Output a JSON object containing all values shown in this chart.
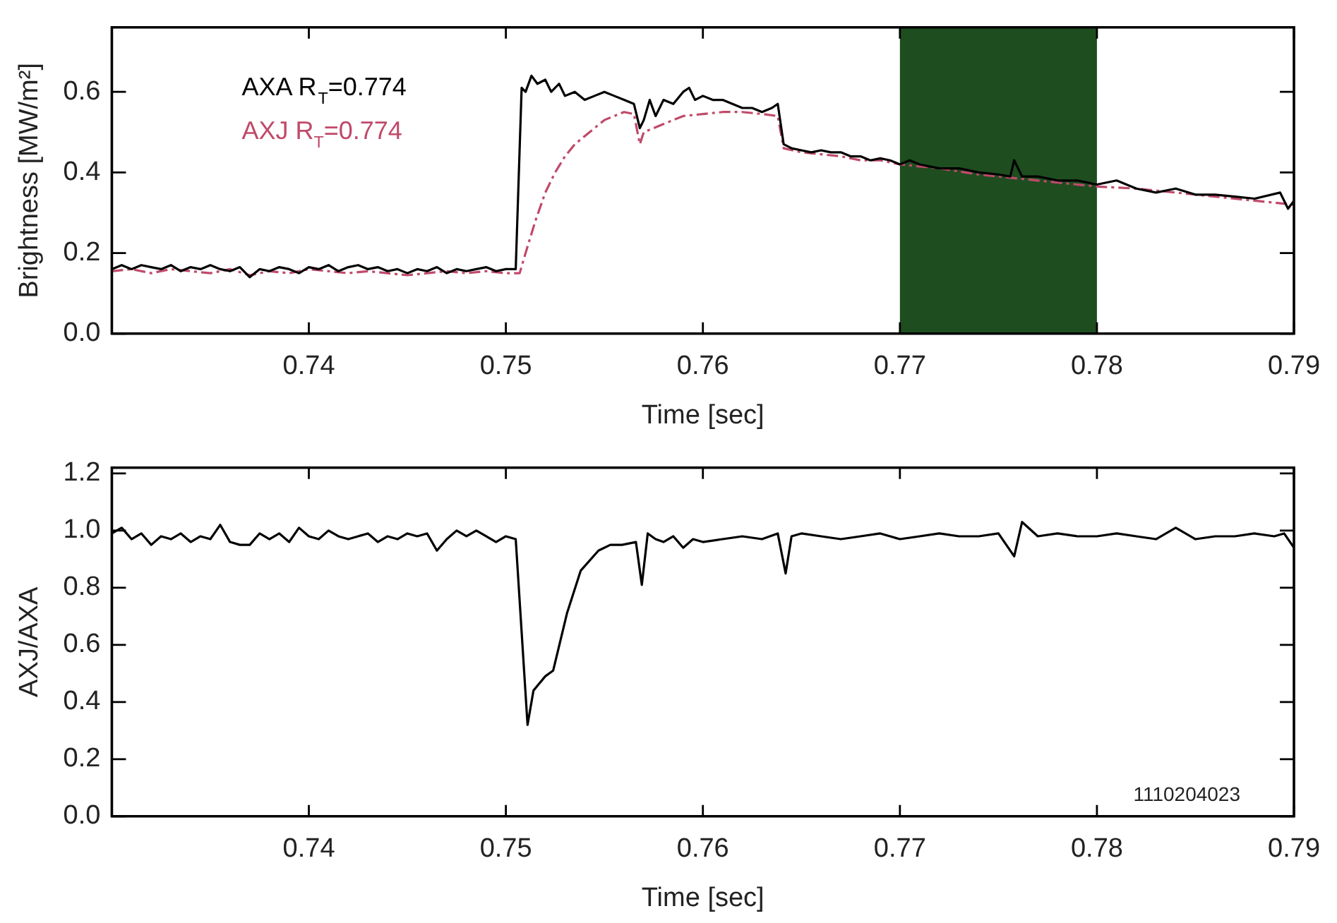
{
  "chart_data": [
    {
      "type": "line",
      "xlabel": "Time [sec]",
      "ylabel": "Brightness [MW/m²]",
      "xlim": [
        0.73,
        0.79
      ],
      "ylim": [
        0,
        0.76
      ],
      "xticks": [
        0.74,
        0.75,
        0.76,
        0.77,
        0.78,
        0.79
      ],
      "yticks": [
        {
          "value": 0,
          "label": "0.0"
        },
        {
          "value": 0.2,
          "label": "0.2"
        },
        {
          "value": 0.4,
          "label": "0.4"
        },
        {
          "value": 0.6,
          "label": "0.6"
        }
      ],
      "grid": false,
      "legend": "top left",
      "bands": [
        {
          "axis": "x",
          "from": 0.77,
          "to": 0.78,
          "color": "#1e4d20"
        }
      ],
      "series": [
        {
          "name": "AXA R$_{T}$=0.774",
          "color": "#000000",
          "line_style": "solid",
          "x": [
            0.73,
            0.7305,
            0.731,
            0.7315,
            0.732,
            0.7325,
            0.733,
            0.7335,
            0.734,
            0.7345,
            0.735,
            0.7355,
            0.736,
            0.7365,
            0.737,
            0.7375,
            0.738,
            0.7385,
            0.739,
            0.7395,
            0.74,
            0.7405,
            0.741,
            0.7415,
            0.742,
            0.7425,
            0.743,
            0.7435,
            0.744,
            0.7445,
            0.745,
            0.7455,
            0.746,
            0.7465,
            0.747,
            0.7475,
            0.748,
            0.7485,
            0.749,
            0.7495,
            0.75,
            0.7505,
            0.7508,
            0.751,
            0.7513,
            0.7516,
            0.752,
            0.7523,
            0.7527,
            0.753,
            0.7535,
            0.754,
            0.7545,
            0.755,
            0.7555,
            0.756,
            0.7565,
            0.7568,
            0.757,
            0.7573,
            0.7576,
            0.758,
            0.7585,
            0.759,
            0.7593,
            0.7596,
            0.76,
            0.7605,
            0.761,
            0.7615,
            0.762,
            0.7625,
            0.763,
            0.7635,
            0.7638,
            0.7641,
            0.7645,
            0.765,
            0.7655,
            0.766,
            0.7665,
            0.767,
            0.7675,
            0.768,
            0.7685,
            0.769,
            0.7695,
            0.77,
            0.7705,
            0.771,
            0.772,
            0.773,
            0.774,
            0.775,
            0.7756,
            0.7758,
            0.7762,
            0.777,
            0.778,
            0.779,
            0.78,
            0.781,
            0.782,
            0.783,
            0.784,
            0.785,
            0.786,
            0.787,
            0.788,
            0.7893,
            0.7897,
            0.79
          ],
          "values": [
            0.16,
            0.17,
            0.16,
            0.17,
            0.165,
            0.16,
            0.17,
            0.155,
            0.165,
            0.16,
            0.17,
            0.16,
            0.155,
            0.165,
            0.14,
            0.16,
            0.155,
            0.165,
            0.16,
            0.15,
            0.165,
            0.16,
            0.17,
            0.155,
            0.165,
            0.17,
            0.16,
            0.165,
            0.155,
            0.16,
            0.15,
            0.16,
            0.155,
            0.165,
            0.15,
            0.16,
            0.155,
            0.16,
            0.165,
            0.155,
            0.16,
            0.16,
            0.61,
            0.6,
            0.64,
            0.62,
            0.63,
            0.6,
            0.62,
            0.59,
            0.6,
            0.58,
            0.59,
            0.6,
            0.59,
            0.58,
            0.57,
            0.51,
            0.53,
            0.58,
            0.54,
            0.58,
            0.57,
            0.6,
            0.61,
            0.58,
            0.59,
            0.58,
            0.58,
            0.57,
            0.56,
            0.56,
            0.55,
            0.56,
            0.57,
            0.47,
            0.46,
            0.455,
            0.45,
            0.455,
            0.45,
            0.45,
            0.44,
            0.44,
            0.43,
            0.435,
            0.43,
            0.42,
            0.43,
            0.42,
            0.41,
            0.41,
            0.4,
            0.395,
            0.39,
            0.43,
            0.39,
            0.39,
            0.38,
            0.38,
            0.37,
            0.38,
            0.36,
            0.35,
            0.36,
            0.345,
            0.345,
            0.34,
            0.335,
            0.35,
            0.31,
            0.33
          ]
        },
        {
          "name": "AXJ R$_{T}$=0.774",
          "color": "#c04a6a",
          "line_style": "dashed",
          "x": [
            0.73,
            0.731,
            0.732,
            0.733,
            0.734,
            0.735,
            0.736,
            0.737,
            0.738,
            0.739,
            0.74,
            0.741,
            0.742,
            0.743,
            0.744,
            0.745,
            0.746,
            0.747,
            0.748,
            0.749,
            0.75,
            0.7507,
            0.751,
            0.7515,
            0.752,
            0.7525,
            0.753,
            0.7535,
            0.754,
            0.7545,
            0.755,
            0.7555,
            0.756,
            0.7565,
            0.7568,
            0.757,
            0.7575,
            0.758,
            0.759,
            0.76,
            0.761,
            0.762,
            0.763,
            0.7638,
            0.7641,
            0.765,
            0.766,
            0.767,
            0.768,
            0.769,
            0.77,
            0.772,
            0.774,
            0.776,
            0.778,
            0.78,
            0.782,
            0.784,
            0.786,
            0.788,
            0.79
          ],
          "values": [
            0.155,
            0.16,
            0.15,
            0.16,
            0.155,
            0.15,
            0.16,
            0.145,
            0.155,
            0.15,
            0.16,
            0.155,
            0.15,
            0.155,
            0.15,
            0.145,
            0.15,
            0.155,
            0.15,
            0.155,
            0.15,
            0.15,
            0.2,
            0.28,
            0.35,
            0.4,
            0.44,
            0.47,
            0.49,
            0.51,
            0.53,
            0.54,
            0.55,
            0.545,
            0.47,
            0.5,
            0.51,
            0.52,
            0.54,
            0.545,
            0.55,
            0.55,
            0.545,
            0.54,
            0.46,
            0.45,
            0.445,
            0.44,
            0.43,
            0.43,
            0.42,
            0.41,
            0.395,
            0.385,
            0.375,
            0.365,
            0.36,
            0.35,
            0.34,
            0.33,
            0.32
          ]
        }
      ]
    },
    {
      "type": "line",
      "xlabel": "Time [sec]",
      "ylabel": "AXJ/AXA",
      "xlim": [
        0.73,
        0.79
      ],
      "ylim": [
        0,
        1.22
      ],
      "xticks": [
        0.74,
        0.75,
        0.76,
        0.77,
        0.78,
        0.79
      ],
      "yticks": [
        {
          "value": 0,
          "label": "0.0"
        },
        {
          "value": 0.2,
          "label": "0.2"
        },
        {
          "value": 0.4,
          "label": "0.4"
        },
        {
          "value": 0.6,
          "label": "0.6"
        },
        {
          "value": 0.8,
          "label": "0.8"
        },
        {
          "value": 1,
          "label": "1.0"
        },
        {
          "value": 1.2,
          "label": "1.2"
        }
      ],
      "grid": false,
      "annotations": [
        "1110204023"
      ],
      "series": [
        {
          "color": "#000000",
          "x": [
            0.73,
            0.7305,
            0.731,
            0.7315,
            0.732,
            0.7325,
            0.733,
            0.7335,
            0.734,
            0.7345,
            0.735,
            0.7355,
            0.736,
            0.7365,
            0.737,
            0.7375,
            0.738,
            0.7385,
            0.739,
            0.7395,
            0.74,
            0.7405,
            0.741,
            0.7415,
            0.742,
            0.7425,
            0.743,
            0.7435,
            0.744,
            0.7445,
            0.745,
            0.7455,
            0.746,
            0.7465,
            0.747,
            0.7475,
            0.748,
            0.7485,
            0.749,
            0.7495,
            0.75,
            0.7505,
            0.7511,
            0.7514,
            0.752,
            0.7524,
            0.7531,
            0.7538,
            0.7547,
            0.7553,
            0.7559,
            0.7566,
            0.7569,
            0.7572,
            0.7576,
            0.758,
            0.7585,
            0.759,
            0.7595,
            0.76,
            0.761,
            0.762,
            0.763,
            0.7638,
            0.7642,
            0.7645,
            0.765,
            0.766,
            0.767,
            0.768,
            0.769,
            0.77,
            0.771,
            0.772,
            0.773,
            0.774,
            0.775,
            0.7758,
            0.7762,
            0.777,
            0.778,
            0.779,
            0.78,
            0.781,
            0.782,
            0.783,
            0.784,
            0.785,
            0.786,
            0.787,
            0.788,
            0.789,
            0.7895,
            0.79
          ],
          "values": [
            0.99,
            1.01,
            0.97,
            0.99,
            0.95,
            0.98,
            0.97,
            0.99,
            0.96,
            0.98,
            0.97,
            1.02,
            0.96,
            0.95,
            0.95,
            0.99,
            0.97,
            0.99,
            0.96,
            1.01,
            0.98,
            0.97,
            1.0,
            0.98,
            0.97,
            0.98,
            0.99,
            0.96,
            0.98,
            0.97,
            0.99,
            0.98,
            0.99,
            0.93,
            0.97,
            1.0,
            0.98,
            1.0,
            0.98,
            0.96,
            0.98,
            0.97,
            0.32,
            0.44,
            0.49,
            0.51,
            0.71,
            0.86,
            0.93,
            0.95,
            0.95,
            0.96,
            0.81,
            0.99,
            0.97,
            0.96,
            0.98,
            0.94,
            0.97,
            0.96,
            0.97,
            0.98,
            0.97,
            0.99,
            0.85,
            0.98,
            0.99,
            0.98,
            0.97,
            0.98,
            0.99,
            0.97,
            0.98,
            0.99,
            0.98,
            0.98,
            0.99,
            0.91,
            1.03,
            0.98,
            0.99,
            0.98,
            0.98,
            0.99,
            0.98,
            0.97,
            1.01,
            0.97,
            0.98,
            0.98,
            0.99,
            0.98,
            0.99,
            0.94
          ]
        }
      ]
    }
  ]
}
